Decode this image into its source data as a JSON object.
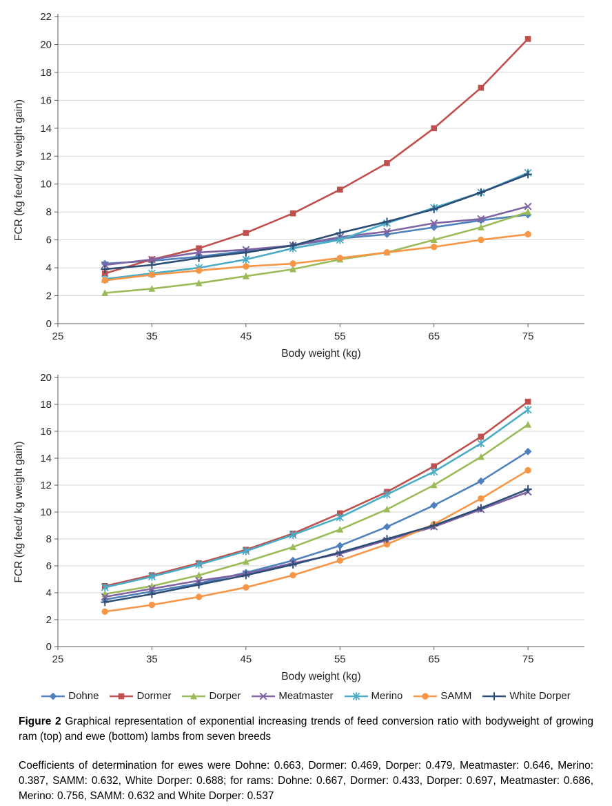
{
  "figure": {
    "caption_label": "Figure 2",
    "caption_text": "Graphical representation of exponential increasing trends of feed conversion ratio with bodyweight of growing ram (top) and ewe (bottom) lambs from seven breeds",
    "coefficients_text": "Coefficients of determination for ewes were Dohne: 0.663, Dormer: 0.469, Dorper: 0.479, Meatmaster: 0.646, Merino: 0.387, SAMM: 0.632, White Dorper: 0.688; for rams: Dohne: 0.667, Dormer: 0.433, Dorper: 0.697, Meatmaster: 0.686, Merino: 0.756, SAMM: 0.632 and White Dorper: 0.537"
  },
  "legend": {
    "position": "bottom",
    "items": [
      {
        "label": "Dohne",
        "color": "#4F81BD",
        "marker": "diamond"
      },
      {
        "label": "Dormer",
        "color": "#C0504D",
        "marker": "square"
      },
      {
        "label": "Dorper",
        "color": "#9BBB59",
        "marker": "triangle"
      },
      {
        "label": "Meatmaster",
        "color": "#8064A2",
        "marker": "x"
      },
      {
        "label": "Merino",
        "color": "#4BACC6",
        "marker": "asterisk"
      },
      {
        "label": "SAMM",
        "color": "#F79646",
        "marker": "circle"
      },
      {
        "label": "White Dorper",
        "color": "#2C4D75",
        "marker": "plus"
      }
    ]
  },
  "chart_data": [
    {
      "type": "line",
      "group": "ram lambs (top)",
      "xlabel": "Body weight (kg)",
      "ylabel": "FCR (kg feed/ kg weight gain)",
      "x": [
        30,
        35,
        40,
        45,
        50,
        55,
        60,
        65,
        70,
        75
      ],
      "xticks": [
        25,
        35,
        45,
        55,
        65,
        75
      ],
      "yticks": [
        0,
        2,
        4,
        6,
        8,
        10,
        12,
        14,
        16,
        18,
        20,
        22
      ],
      "xlim": [
        25,
        81
      ],
      "ylim": [
        0,
        22
      ],
      "grid": "horizontal",
      "series": [
        {
          "name": "Dohne",
          "color": "#4F81BD",
          "marker": "diamond",
          "values": [
            4.3,
            4.5,
            4.8,
            5.2,
            5.6,
            6.1,
            6.4,
            6.9,
            7.4,
            7.8
          ]
        },
        {
          "name": "Dormer",
          "color": "#C0504D",
          "marker": "square",
          "values": [
            3.6,
            4.6,
            5.4,
            6.5,
            7.9,
            9.6,
            11.5,
            14.0,
            16.9,
            20.4
          ]
        },
        {
          "name": "Dorper",
          "color": "#9BBB59",
          "marker": "triangle",
          "values": [
            2.2,
            2.5,
            2.9,
            3.4,
            3.9,
            4.6,
            5.1,
            6.0,
            6.9,
            8.0
          ]
        },
        {
          "name": "Meatmaster",
          "color": "#8064A2",
          "marker": "x",
          "values": [
            4.2,
            4.6,
            5.1,
            5.3,
            5.6,
            6.2,
            6.6,
            7.2,
            7.5,
            8.4
          ]
        },
        {
          "name": "Merino",
          "color": "#4BACC6",
          "marker": "asterisk",
          "values": [
            3.2,
            3.6,
            4.0,
            4.6,
            5.4,
            6.0,
            7.2,
            8.3,
            9.4,
            10.8
          ]
        },
        {
          "name": "SAMM",
          "color": "#F79646",
          "marker": "circle",
          "values": [
            3.1,
            3.5,
            3.8,
            4.1,
            4.3,
            4.7,
            5.1,
            5.5,
            6.0,
            6.4
          ]
        },
        {
          "name": "White Dorper",
          "color": "#2C4D75",
          "marker": "plus",
          "values": [
            3.9,
            4.2,
            4.7,
            5.1,
            5.6,
            6.5,
            7.3,
            8.2,
            9.4,
            10.7
          ]
        }
      ]
    },
    {
      "type": "line",
      "group": "ewe lambs (bottom)",
      "xlabel": "Body weight (kg)",
      "ylabel": "FCR (kg feed/ kg weight gain)",
      "x": [
        30,
        35,
        40,
        45,
        50,
        55,
        60,
        65,
        70,
        75
      ],
      "xticks": [
        25,
        35,
        45,
        55,
        65,
        75
      ],
      "yticks": [
        0,
        2,
        4,
        6,
        8,
        10,
        12,
        14,
        16,
        18,
        20
      ],
      "xlim": [
        25,
        81
      ],
      "ylim": [
        0,
        20
      ],
      "grid": "horizontal",
      "series": [
        {
          "name": "Dohne",
          "color": "#4F81BD",
          "marker": "diamond",
          "values": [
            3.5,
            4.1,
            4.7,
            5.5,
            6.4,
            7.5,
            8.9,
            10.5,
            12.3,
            14.5
          ]
        },
        {
          "name": "Dormer",
          "color": "#C0504D",
          "marker": "square",
          "values": [
            4.5,
            5.3,
            6.2,
            7.2,
            8.4,
            9.9,
            11.5,
            13.4,
            15.6,
            18.2
          ]
        },
        {
          "name": "Dorper",
          "color": "#9BBB59",
          "marker": "triangle",
          "values": [
            3.9,
            4.5,
            5.3,
            6.3,
            7.4,
            8.7,
            10.2,
            12.0,
            14.1,
            16.5
          ]
        },
        {
          "name": "Meatmaster",
          "color": "#8064A2",
          "marker": "x",
          "values": [
            3.7,
            4.3,
            4.9,
            5.4,
            6.2,
            6.9,
            7.9,
            8.9,
            10.2,
            11.5
          ]
        },
        {
          "name": "Merino",
          "color": "#4BACC6",
          "marker": "asterisk",
          "values": [
            4.4,
            5.2,
            6.1,
            7.1,
            8.3,
            9.6,
            11.3,
            13.0,
            15.1,
            17.6
          ]
        },
        {
          "name": "SAMM",
          "color": "#F79646",
          "marker": "circle",
          "values": [
            2.6,
            3.1,
            3.7,
            4.4,
            5.3,
            6.4,
            7.6,
            9.1,
            11.0,
            13.1
          ]
        },
        {
          "name": "White Dorper",
          "color": "#2C4D75",
          "marker": "plus",
          "values": [
            3.3,
            3.9,
            4.6,
            5.3,
            6.1,
            7.0,
            8.0,
            9.0,
            10.3,
            11.7
          ]
        }
      ]
    }
  ]
}
